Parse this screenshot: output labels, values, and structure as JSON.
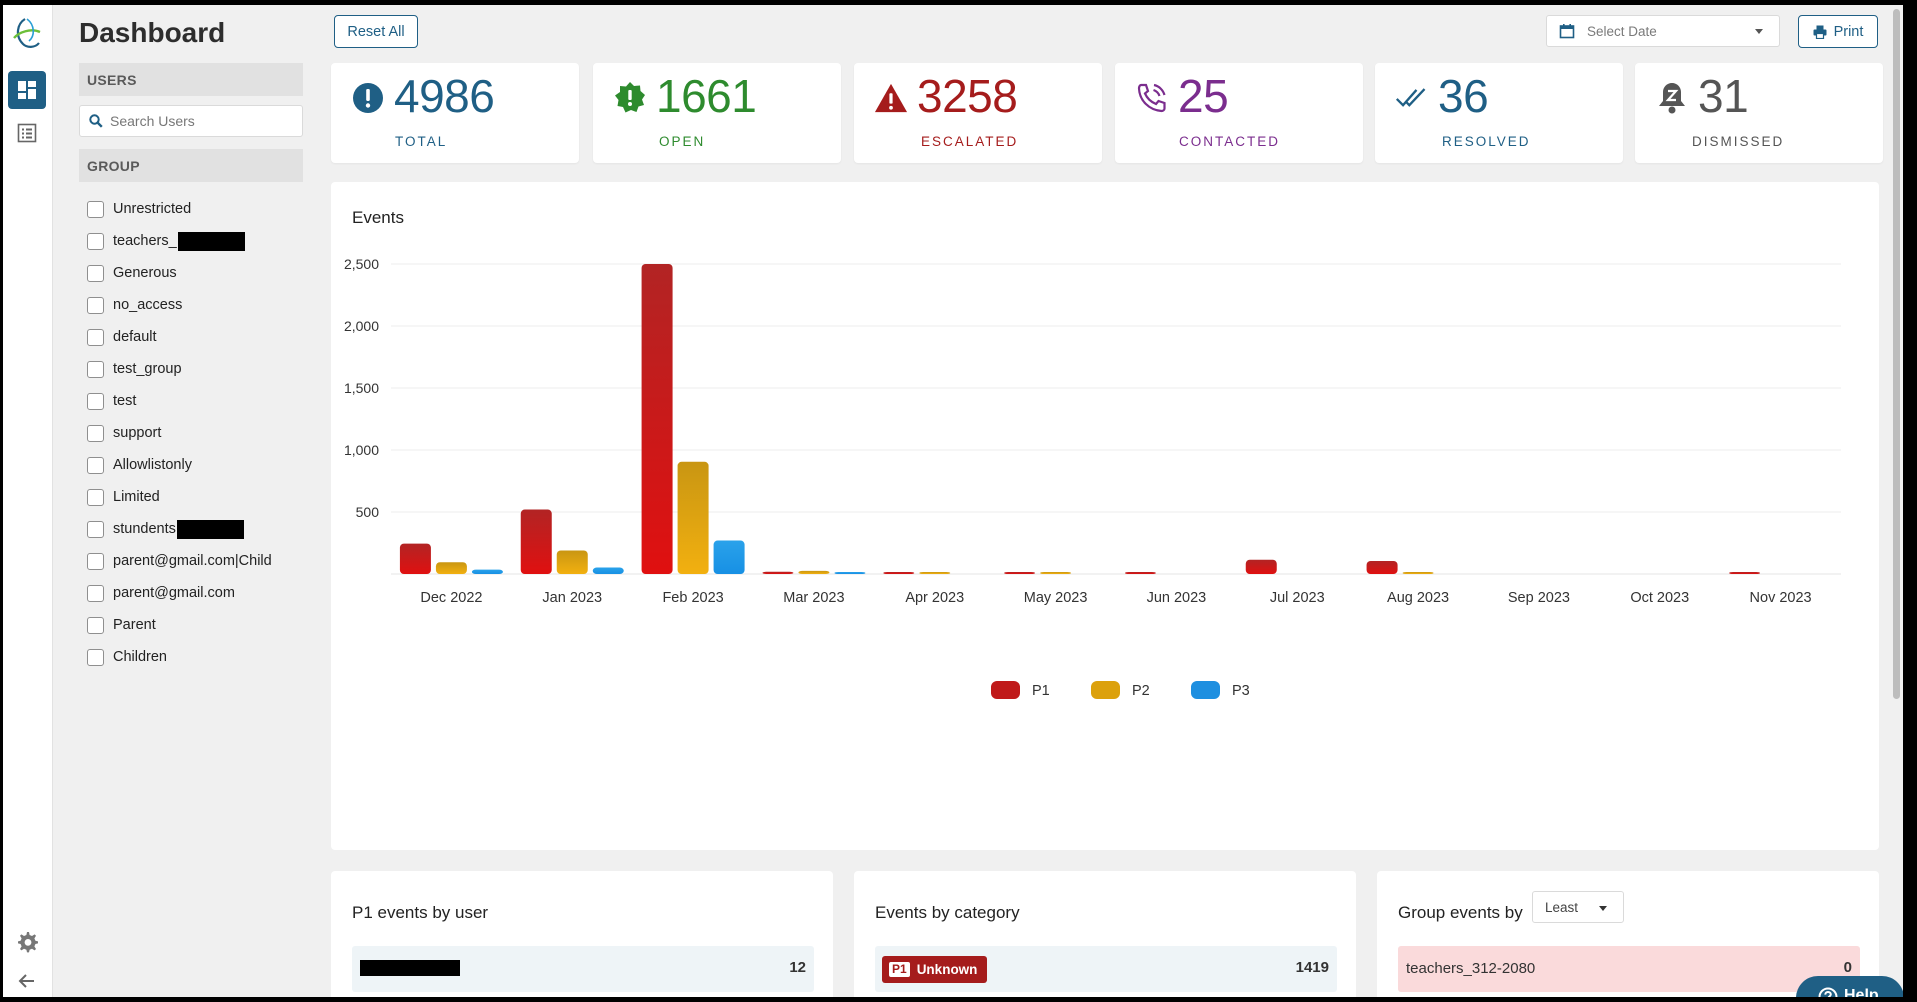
{
  "sidebar": {
    "title": "Dashboard",
    "users_heading": "USERS",
    "search_placeholder": "Search Users",
    "group_heading": "GROUP",
    "groups": [
      {
        "label": "Unrestricted"
      },
      {
        "label": "teachers_",
        "redacted": true
      },
      {
        "label": "Generous"
      },
      {
        "label": "no_access"
      },
      {
        "label": "default"
      },
      {
        "label": "test_group"
      },
      {
        "label": "test"
      },
      {
        "label": "support"
      },
      {
        "label": "Allowlistonly"
      },
      {
        "label": "Limited"
      },
      {
        "label": "stundents",
        "redacted": true
      },
      {
        "label": "parent@gmail.com|Child"
      },
      {
        "label": "parent@gmail.com"
      },
      {
        "label": "Parent"
      },
      {
        "label": "Children"
      }
    ]
  },
  "toolbar": {
    "reset_label": "Reset All",
    "date_placeholder": "Select Date",
    "print_label": "Print"
  },
  "stats": [
    {
      "value": "4986",
      "label": "TOTAL",
      "color": "#1f5f85",
      "icon": "alert-circle-icon"
    },
    {
      "value": "1661",
      "label": "OPEN",
      "color": "#2e8b2e",
      "icon": "badge-alert-icon"
    },
    {
      "value": "3258",
      "label": "ESCALATED",
      "color": "#a51c1c",
      "icon": "warning-triangle-icon"
    },
    {
      "value": "25",
      "label": "CONTACTED",
      "color": "#7b2d8e",
      "icon": "phone-call-icon"
    },
    {
      "value": "36",
      "label": "RESOLVED",
      "color": "#1f5f85",
      "icon": "double-check-icon"
    },
    {
      "value": "31",
      "label": "DISMISSED",
      "color": "#555555",
      "icon": "bell-sleep-icon"
    }
  ],
  "events_title": "Events",
  "chart_data": {
    "type": "bar",
    "title": "Events",
    "categories": [
      "Dec 2022",
      "Jan 2023",
      "Feb 2023",
      "Mar 2023",
      "Apr 2023",
      "May 2023",
      "Jun 2023",
      "Jul 2023",
      "Aug 2023",
      "Sep 2023",
      "Oct 2023",
      "Nov 2023"
    ],
    "series": [
      {
        "name": "P1",
        "color": "#c01a1a",
        "values": [
          245,
          520,
          2500,
          18,
          12,
          15,
          14,
          115,
          105,
          0,
          0,
          12
        ]
      },
      {
        "name": "P2",
        "color": "#dca10c",
        "values": [
          95,
          190,
          905,
          25,
          10,
          14,
          0,
          0,
          12,
          0,
          0,
          0
        ]
      },
      {
        "name": "P3",
        "color": "#1e8fe0",
        "values": [
          35,
          52,
          270,
          14,
          0,
          0,
          0,
          0,
          0,
          0,
          0,
          0
        ]
      }
    ],
    "y_ticks": [
      "500",
      "1,000",
      "1,500",
      "2,000",
      "2,500"
    ],
    "ylim": [
      0,
      2500
    ],
    "grid": true,
    "legend_position": "bottom"
  },
  "bottom": {
    "p1_title": "P1 events by user",
    "p1_row_value": "12",
    "category_title": "Events by category",
    "category_badge": "P1",
    "category_name": "Unknown",
    "category_value": "1419",
    "group_title": "Group events by",
    "group_select": "Least",
    "group_row_name": "teachers_312-2080",
    "group_row_value": "0"
  },
  "help_label": "Help"
}
